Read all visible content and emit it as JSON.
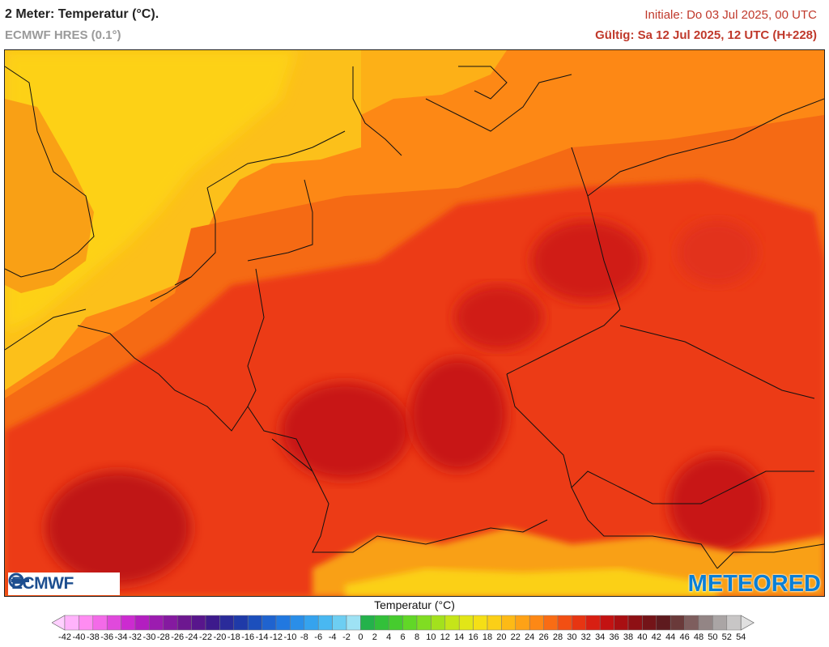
{
  "header": {
    "title": "2 Meter: Temperatur (°C).",
    "subtitle": "ECMWF HRES (0.1°)",
    "initial": "Initiale: Do 03 Jul 2025, 00 UTC",
    "valid": "Gültig: Sa 12 Jul 2025, 12 UTC (H+228)"
  },
  "logos": {
    "left": "ECMWF",
    "right": "METEORED",
    "right_color": "#0a7fd6",
    "left_color": "#1d4e8f"
  },
  "legend": {
    "title": "Temperatur (°C)",
    "ticks": [
      "-42",
      "-40",
      "-38",
      "-36",
      "-34",
      "-32",
      "-30",
      "-28",
      "-26",
      "-24",
      "-22",
      "-20",
      "-18",
      "-16",
      "-14",
      "-12",
      "-10",
      "-8",
      "-6",
      "-4",
      "-2",
      "0",
      "2",
      "4",
      "6",
      "8",
      "10",
      "12",
      "14",
      "16",
      "18",
      "20",
      "22",
      "24",
      "26",
      "28",
      "30",
      "32",
      "34",
      "36",
      "38",
      "40",
      "42",
      "44",
      "46",
      "48",
      "50",
      "52",
      "54"
    ],
    "colors": [
      "#ffd0ff",
      "#ffb3fb",
      "#ff8cf2",
      "#f36ae8",
      "#e049dc",
      "#cc2bd0",
      "#b31ec0",
      "#9c1cb0",
      "#851aa0",
      "#6d1890",
      "#58168c",
      "#3d1a8c",
      "#2a2b9a",
      "#1f3aa8",
      "#1c4fbc",
      "#1f63cf",
      "#2178e0",
      "#2a8ee8",
      "#35a3ee",
      "#49b8f1",
      "#6dcef2",
      "#9ee2f4",
      "#24b24b",
      "#32c03a",
      "#46cc2e",
      "#61d727",
      "#80dd22",
      "#a3e11d",
      "#c5e519",
      "#e2e617",
      "#f5df16",
      "#fbcf17",
      "#fdba16",
      "#fea216",
      "#fd8815",
      "#f96c14",
      "#f24f13",
      "#e73512",
      "#d81f12",
      "#c31212",
      "#a90f12",
      "#8e1014",
      "#741418",
      "#5e1a1e",
      "#6a3a3a",
      "#7e5e5e",
      "#938585",
      "#aaa5a5",
      "#c8c6c6",
      "#e0e0e0"
    ]
  }
}
